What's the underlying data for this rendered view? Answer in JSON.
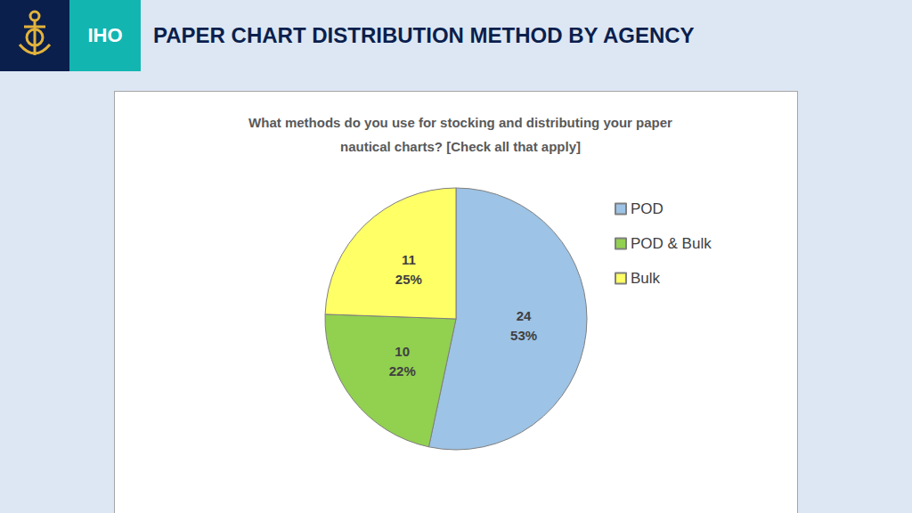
{
  "slide": {
    "logo_text": "IHO",
    "heading": "PAPER CHART DISTRIBUTION METHOD BY AGENCY"
  },
  "chart_data": {
    "type": "pie",
    "title": "What methods do you use for stocking and distributing your paper\nnautical charts? [Check all that apply]",
    "categories": [
      "POD",
      "POD & Bulk",
      "Bulk"
    ],
    "values": [
      24,
      10,
      11
    ],
    "percentages": [
      53,
      22,
      25
    ],
    "percentage_labels": [
      "53%",
      "22%",
      "25%"
    ],
    "colors": [
      "#9dc3e6",
      "#92d050",
      "#ffff66"
    ],
    "data_labels": true,
    "legend": "right"
  }
}
